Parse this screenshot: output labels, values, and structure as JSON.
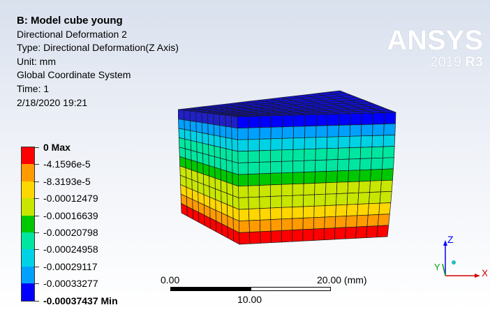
{
  "info": {
    "title": "B: Model cube young",
    "result_name": "Directional Deformation 2",
    "type": "Type: Directional Deformation(Z Axis)",
    "unit": "Unit: mm",
    "coord_system": "Global Coordinate System",
    "time": "Time: 1",
    "timestamp": "2/18/2020 19:21"
  },
  "logo": {
    "brand": "ANSYS",
    "version": "2019",
    "release": "R3"
  },
  "legend": {
    "labels": [
      "0 Max",
      "-4.1596e-5",
      "-8.3193e-5",
      "-0.00012479",
      "-0.00016639",
      "-0.00020798",
      "-0.00024958",
      "-0.00029117",
      "-0.00033277",
      "-0.00037437 Min"
    ],
    "colors": [
      "#ff0000",
      "#ff9b00",
      "#ffd700",
      "#c8e600",
      "#00c800",
      "#00e6a0",
      "#00d2e6",
      "#00a0ff",
      "#0000ff"
    ]
  },
  "scale": {
    "start": "0.00",
    "mid": "10.00",
    "end": "20.00 (mm)"
  },
  "triad": {
    "z": "Z",
    "y": "Y",
    "x": "X"
  }
}
